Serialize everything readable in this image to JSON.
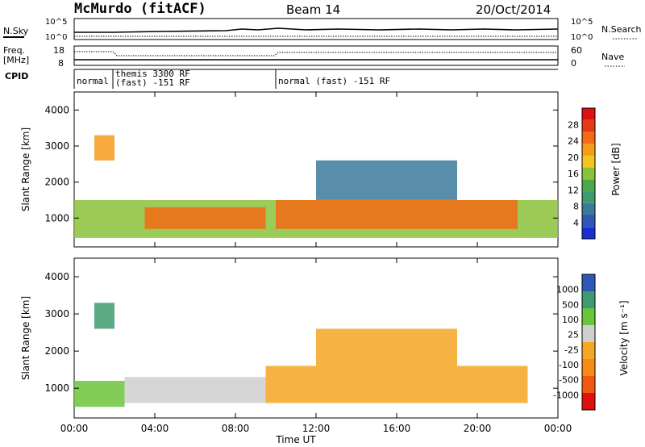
{
  "header": {
    "station": "McMurdo (fitACF)",
    "beam": "Beam 14",
    "date": "20/Oct/2014"
  },
  "top_panels": {
    "nsky": {
      "label": "N.Sky",
      "ticks": [
        "10^5",
        "10^0"
      ]
    },
    "nsearch": {
      "label": "N.Search",
      "ticks": [
        "10^5",
        "10^0"
      ]
    },
    "freq": {
      "label_line1": "Freq.",
      "label_line2": "[MHz]",
      "ticks": [
        "18",
        "8"
      ]
    },
    "nave": {
      "label": "Nave",
      "ticks": [
        "60",
        "0"
      ]
    },
    "cpid": {
      "label": "CPID",
      "segments": [
        {
          "line1": "normal",
          "line2": ""
        },
        {
          "line1": "themis 3300 RF",
          "line2": "(fast) -151 RF"
        },
        {
          "line1": "normal (fast) -151 RF",
          "line2": ""
        }
      ]
    }
  },
  "chart_data": [
    {
      "type": "heatmap",
      "title": "",
      "ylabel": "Slant Range [km]",
      "xlabel": "Time UT",
      "ylim": [
        200,
        4500
      ],
      "yticks": [
        "4000",
        "3000",
        "2000",
        "1000"
      ],
      "ytick_values": [
        4000,
        3000,
        2000,
        1000
      ],
      "xlim": [
        0,
        24
      ],
      "xticks": [
        "00:00",
        "04:00",
        "08:00",
        "12:00",
        "16:00",
        "20:00",
        "00:00"
      ],
      "xtick_values": [
        0,
        4,
        8,
        12,
        16,
        20,
        24
      ],
      "colorbar": {
        "label": "Power [dB]",
        "ticks": [
          "28",
          "24",
          "20",
          "16",
          "12",
          "8",
          "4"
        ],
        "range": [
          0,
          30
        ],
        "colors": [
          "#1c2fd6",
          "#2f57b8",
          "#3b7a9a",
          "#3f9a6f",
          "#4aa84a",
          "#8cc23a",
          "#f2c521",
          "#f59b1a",
          "#f36b14",
          "#e53a12",
          "#e01010"
        ]
      },
      "regions": [
        {
          "t0": 0.0,
          "t1": 24.0,
          "r0": 450,
          "r1": 1500,
          "value": 14
        },
        {
          "t0": 1.0,
          "t1": 2.0,
          "r0": 2600,
          "r1": 3300,
          "value": 20
        },
        {
          "t0": 3.5,
          "t1": 9.5,
          "r0": 700,
          "r1": 1300,
          "value": 24
        },
        {
          "t0": 10.0,
          "t1": 22.0,
          "r0": 700,
          "r1": 1500,
          "value": 24
        },
        {
          "t0": 12.0,
          "t1": 19.0,
          "r0": 1500,
          "r1": 2600,
          "value": 8
        }
      ]
    },
    {
      "type": "heatmap",
      "title": "",
      "ylabel": "Slant Range [km]",
      "xlabel": "Time UT",
      "ylim": [
        200,
        4500
      ],
      "yticks": [
        "4000",
        "3000",
        "2000",
        "1000"
      ],
      "ytick_values": [
        4000,
        3000,
        2000,
        1000
      ],
      "xlim": [
        0,
        24
      ],
      "xticks": [
        "00:00",
        "04:00",
        "08:00",
        "12:00",
        "16:00",
        "20:00",
        "00:00"
      ],
      "xtick_values": [
        0,
        4,
        8,
        12,
        16,
        20,
        24
      ],
      "colorbar": {
        "label": "Velocity [m s⁻¹]",
        "ticks": [
          "1000",
          "500",
          "100",
          "25",
          "-25",
          "-100",
          "-500",
          "-1000"
        ],
        "range": [
          -1000,
          1000
        ],
        "colors": [
          "#e01010",
          "#f05a10",
          "#f58a14",
          "#f5a623",
          "#cfcfcf",
          "#6cc43a",
          "#3f9a6f",
          "#2f57b8"
        ]
      },
      "regions": [
        {
          "t0": 0.0,
          "t1": 2.5,
          "r0": 500,
          "r1": 1200,
          "value": 300
        },
        {
          "t0": 1.0,
          "t1": 2.0,
          "r0": 2600,
          "r1": 3300,
          "value": 600
        },
        {
          "t0": 2.5,
          "t1": 9.5,
          "r0": 600,
          "r1": 1300,
          "value": 200
        },
        {
          "t0": 9.5,
          "t1": 22.5,
          "r0": 600,
          "r1": 1600,
          "value": -200
        },
        {
          "t0": 12.0,
          "t1": 19.0,
          "r0": 1600,
          "r1": 2600,
          "value": -150
        }
      ]
    }
  ]
}
